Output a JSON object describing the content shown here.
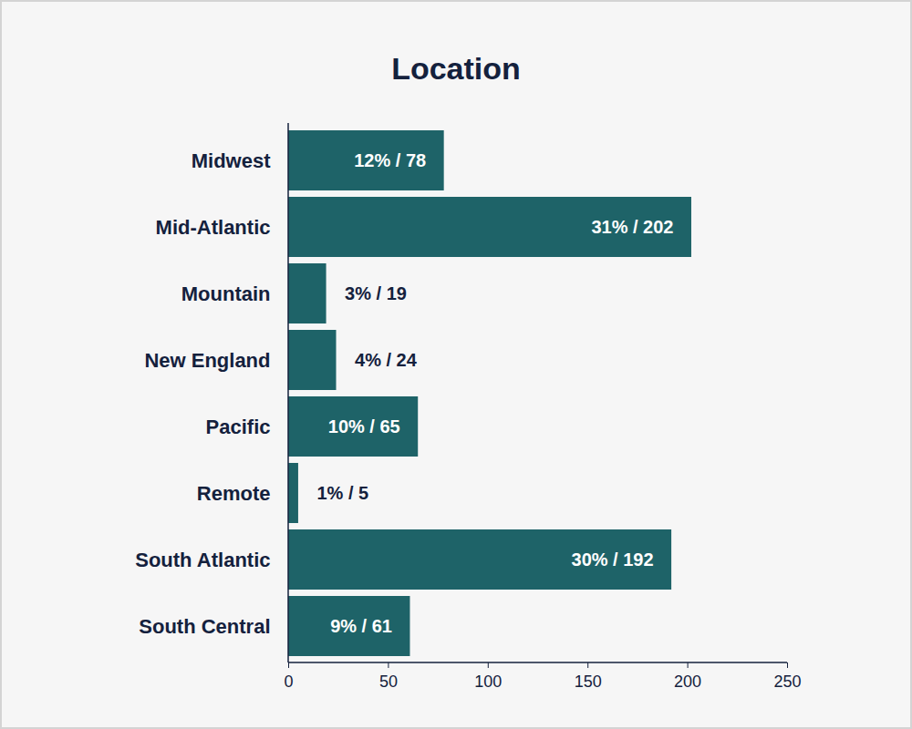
{
  "chart_data": {
    "type": "bar",
    "title": "Location",
    "orientation": "horizontal",
    "categories": [
      "Midwest",
      "Mid-Atlantic",
      "Mountain",
      "New England",
      "Pacific",
      "Remote",
      "South Atlantic",
      "South Central"
    ],
    "values": [
      78,
      202,
      19,
      24,
      65,
      5,
      192,
      61
    ],
    "value_labels": [
      "12% / 78",
      "31% / 202",
      "3% / 19",
      "4% / 24",
      "10% / 65",
      "1% / 5",
      "30% / 192",
      "9% / 61"
    ],
    "color": "#1e6368",
    "xlim": [
      0,
      250
    ],
    "xticks": [
      0,
      50,
      100,
      150,
      200,
      250
    ],
    "grid": false,
    "data_labels": true
  }
}
